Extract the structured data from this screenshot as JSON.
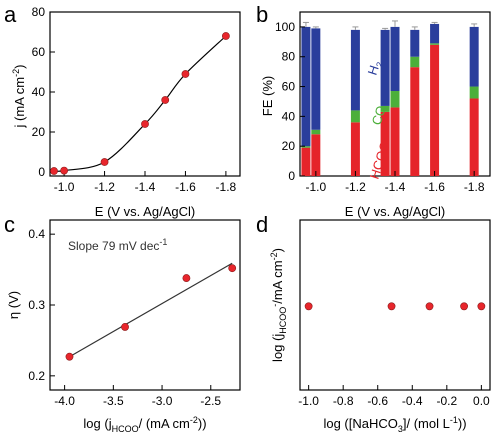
{
  "colors": {
    "marker": "#e8262c",
    "marker_edge": "#8b1a1a",
    "curve": "#000000",
    "fit_line": "#333333",
    "h2": "#2a3e9c",
    "co": "#4caf3a",
    "hcoo": "#e5242a",
    "error_bar": "#999999"
  },
  "chart_data": [
    {
      "panel": "a",
      "type": "line",
      "xlabel": "E (V vs. Ag/AgCl)",
      "ylabel": "j (mA cm⁻²)",
      "xlim": [
        -0.95,
        -1.85
      ],
      "ylim": [
        -2,
        80
      ],
      "xticks": [
        -1.0,
        -1.2,
        -1.4,
        -1.6,
        -1.8
      ],
      "xtick_labels": [
        "-1.0",
        "-1.2",
        "-1.4",
        "-1.6",
        "-1.8"
      ],
      "yticks": [
        0,
        20,
        40,
        60,
        80
      ],
      "ytick_labels": [
        "0",
        "20",
        "40",
        "60",
        "80"
      ],
      "x": [
        -0.95,
        -1.0,
        -1.2,
        -1.4,
        -1.5,
        -1.6,
        -1.8
      ],
      "y": [
        0.5,
        0.7,
        5,
        24,
        36,
        49,
        68
      ]
    },
    {
      "panel": "b",
      "type": "bar",
      "stacked": true,
      "xlabel": "E (V vs. Ag/AgCl)",
      "ylabel": "FE (%)",
      "xlim": [
        -0.92,
        -1.88
      ],
      "ylim": [
        0,
        110
      ],
      "xticks": [
        -1.0,
        -1.2,
        -1.4,
        -1.6,
        -1.8
      ],
      "xtick_labels": [
        "-1.0",
        "-1.2",
        "-1.4",
        "-1.6",
        "-1.8"
      ],
      "yticks": [
        0,
        20,
        40,
        60,
        80,
        100
      ],
      "ytick_labels": [
        "0",
        "20",
        "40",
        "60",
        "80",
        "100"
      ],
      "x": [
        -0.95,
        -1.0,
        -1.2,
        -1.35,
        -1.4,
        -1.5,
        -1.6,
        -1.8
      ],
      "series": [
        {
          "name": "HCOO⁻",
          "color_key": "hcoo",
          "values": [
            19,
            28,
            36,
            43,
            46,
            73,
            88,
            52
          ]
        },
        {
          "name": "CO",
          "color_key": "co",
          "values": [
            1,
            3,
            8,
            4,
            11,
            7,
            1,
            8
          ]
        },
        {
          "name": "H₂",
          "color_key": "h2",
          "values": [
            80,
            68,
            54,
            51,
            43,
            18,
            13,
            40
          ]
        }
      ],
      "error_bar": [
        3,
        1,
        2,
        1,
        4,
        2,
        1,
        2
      ]
    },
    {
      "panel": "c",
      "type": "scatter",
      "xlabel": "log (j_HCOO⁻/ (mA cm⁻²))",
      "ylabel": "η (V)",
      "xlim": [
        -4.15,
        -2.2
      ],
      "ylim": [
        0.18,
        0.42
      ],
      "xticks": [
        -4.0,
        -3.5,
        -3.0,
        -2.5
      ],
      "xtick_labels": [
        "-4.0",
        "-3.5",
        "-3.0",
        "-2.5"
      ],
      "yticks": [
        0.2,
        0.3,
        0.4
      ],
      "ytick_labels": [
        "0.2",
        "0.3",
        "0.4"
      ],
      "x": [
        -3.95,
        -3.38,
        -2.75,
        -2.28
      ],
      "y": [
        0.227,
        0.269,
        0.338,
        0.352
      ],
      "fit_line": {
        "x": [
          -3.95,
          -2.28
        ],
        "y": [
          0.227,
          0.359
        ]
      },
      "annotation": "Slope 79 mV dec⁻¹"
    },
    {
      "panel": "d",
      "type": "scatter",
      "xlabel": "log ([NaHCO₃]/ (mol L⁻¹))",
      "ylabel": "log (j_HCOO⁻/mA cm⁻²)",
      "xlim": [
        -1.05,
        0.05
      ],
      "ylim": [
        1.0,
        2.3
      ],
      "xticks": [
        -1.0,
        -0.8,
        -0.6,
        -0.4,
        -0.2,
        0.0
      ],
      "xtick_labels": [
        "-1.0",
        "-0.8",
        "-0.6",
        "-0.4",
        "-0.2",
        "0.0"
      ],
      "x": [
        -1.0,
        -0.52,
        -0.3,
        -0.1,
        0.0
      ],
      "y": [
        1.64,
        1.64,
        1.64,
        1.64,
        1.64
      ]
    }
  ],
  "panels": {
    "a_label": "a",
    "b_label": "b",
    "c_label": "c",
    "d_label": "d",
    "a_xlabel": "E (V vs. Ag/AgCl)",
    "b_xlabel": "E (V vs. Ag/AgCl)",
    "b_ylabel": "FE (%)",
    "c_ylabel": "η (V)",
    "c_annotation": "Slope 79 mV dec",
    "c_annotation_sup": "-1",
    "a_ylabel_main": "j (mA cm",
    "a_ylabel_sup": "-2",
    "a_ylabel_end": ")",
    "c_xlabel_a": "log (j",
    "c_xlabel_sub": "HCOO",
    "c_xlabel_b": "/ (mA cm",
    "c_xlabel_sup": "-2",
    "c_xlabel_c": "))",
    "d_xlabel_a": "log ([NaHCO",
    "d_xlabel_sub": "3",
    "d_xlabel_b": "]/ (mol L",
    "d_xlabel_sup": "-1",
    "d_xlabel_c": "))",
    "d_ylabel_a": "log (j",
    "d_ylabel_sub": "HCOO",
    "d_ylabel_sup_minus": "-",
    "d_ylabel_b": "/mA cm",
    "d_ylabel_sup": "-2",
    "d_ylabel_c": ")",
    "legend_h2": "H",
    "legend_h2_sub": "2",
    "legend_co": "CO",
    "legend_hcoo": "HCOO",
    "legend_hcoo_sup": "-"
  }
}
